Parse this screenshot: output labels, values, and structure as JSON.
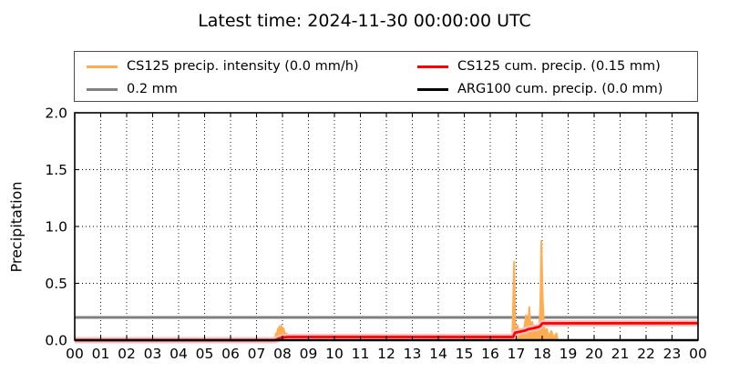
{
  "title": "Latest time: 2024-11-30 00:00:00 UTC",
  "legend": {
    "items": [
      {
        "label": "CS125 precip. intensity (0.0 mm/h)",
        "color": "#ffad52",
        "series": "cs125_intensity"
      },
      {
        "label": "0.2 mm",
        "color": "#808080",
        "series": "threshold"
      },
      {
        "label": "CS125 cum. precip. (0.15 mm)",
        "color": "#ff0000",
        "series": "cs125_cumulative"
      },
      {
        "label": "ARG100 cum. precip. (0.0 mm)",
        "color": "#000000",
        "series": "arg100_cumulative"
      }
    ]
  },
  "chart_data": {
    "type": "line",
    "title": "Latest time: 2024-11-30 00:00:00 UTC",
    "xlabel": "",
    "ylabel": "Precipitation",
    "xlim": [
      0,
      24
    ],
    "ylim": [
      0,
      2.0
    ],
    "x_tick_labels": [
      "00",
      "01",
      "02",
      "03",
      "04",
      "05",
      "06",
      "07",
      "08",
      "09",
      "10",
      "11",
      "12",
      "13",
      "14",
      "15",
      "16",
      "17",
      "18",
      "19",
      "20",
      "21",
      "22",
      "23",
      "00"
    ],
    "y_tick_labels": [
      "0.0",
      "0.5",
      "1.0",
      "1.5",
      "2.0"
    ],
    "y_tick_values": [
      0,
      0.5,
      1.0,
      1.5,
      2.0
    ],
    "grid": "dotted",
    "legend_position": "top",
    "series": [
      {
        "name": "0.2 mm",
        "id": "threshold",
        "color": "#808080",
        "width": 3,
        "points": [
          [
            0,
            0.2
          ],
          [
            24,
            0.2
          ]
        ]
      },
      {
        "name": "CS125 precip. intensity (0.0 mm/h)",
        "id": "cs125_intensity",
        "color": "#ffad52",
        "width": 2,
        "fill": true,
        "points": [
          [
            0,
            0
          ],
          [
            7.7,
            0
          ],
          [
            7.72,
            0.02
          ],
          [
            7.75,
            0.06
          ],
          [
            7.78,
            0.04
          ],
          [
            7.82,
            0.1
          ],
          [
            7.85,
            0.07
          ],
          [
            7.88,
            0.12
          ],
          [
            7.92,
            0.09
          ],
          [
            7.95,
            0.13
          ],
          [
            8.0,
            0.07
          ],
          [
            8.05,
            0.1
          ],
          [
            8.1,
            0.04
          ],
          [
            8.15,
            0.06
          ],
          [
            8.2,
            0.03
          ],
          [
            8.3,
            0.02
          ],
          [
            8.5,
            0.015
          ],
          [
            16.8,
            0.015
          ],
          [
            16.85,
            0.02
          ],
          [
            16.88,
            0.3
          ],
          [
            16.92,
            0.69
          ],
          [
            16.96,
            0.1
          ],
          [
            17.0,
            0.03
          ],
          [
            17.05,
            0.13
          ],
          [
            17.1,
            0.05
          ],
          [
            17.15,
            0.1
          ],
          [
            17.2,
            0.04
          ],
          [
            17.3,
            0.09
          ],
          [
            17.38,
            0.22
          ],
          [
            17.45,
            0.1
          ],
          [
            17.5,
            0.29
          ],
          [
            17.55,
            0.13
          ],
          [
            17.62,
            0.16
          ],
          [
            17.68,
            0.07
          ],
          [
            17.75,
            0.1
          ],
          [
            17.8,
            0.04
          ],
          [
            17.88,
            0.1
          ],
          [
            17.93,
            0.3
          ],
          [
            17.97,
            0.87
          ],
          [
            18.02,
            0.35
          ],
          [
            18.07,
            0.12
          ],
          [
            18.12,
            0.06
          ],
          [
            18.18,
            0.1
          ],
          [
            18.25,
            0.03
          ],
          [
            18.35,
            0.08
          ],
          [
            18.45,
            0.02
          ],
          [
            18.55,
            0.06
          ],
          [
            18.6,
            0
          ],
          [
            24,
            0
          ]
        ]
      },
      {
        "name": "CS125 cum. precip. (0.15 mm)",
        "id": "cs125_cumulative",
        "color": "#ff0000",
        "halo_color": "#ffc0c0",
        "width": 2.8,
        "points": [
          [
            0,
            0
          ],
          [
            7.72,
            0
          ],
          [
            7.8,
            0.008
          ],
          [
            7.9,
            0.018
          ],
          [
            8.0,
            0.024
          ],
          [
            8.2,
            0.028
          ],
          [
            16.88,
            0.028
          ],
          [
            16.95,
            0.065
          ],
          [
            17.05,
            0.07
          ],
          [
            17.2,
            0.078
          ],
          [
            17.35,
            0.085
          ],
          [
            17.45,
            0.095
          ],
          [
            17.55,
            0.1
          ],
          [
            17.7,
            0.107
          ],
          [
            17.85,
            0.115
          ],
          [
            17.93,
            0.125
          ],
          [
            18.0,
            0.148
          ],
          [
            24,
            0.15
          ]
        ]
      },
      {
        "name": "ARG100 cum. precip. (0.0 mm)",
        "id": "arg100_cumulative",
        "color": "#000000",
        "width": 2.6,
        "points": [
          [
            0,
            0
          ],
          [
            24,
            0
          ]
        ]
      }
    ]
  }
}
